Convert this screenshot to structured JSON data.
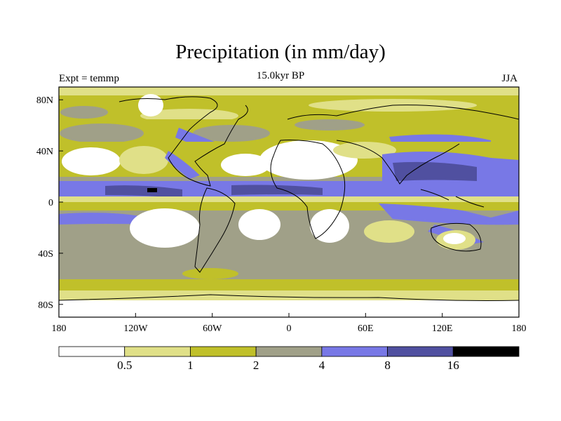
{
  "title": "Precipitation (in mm/day)",
  "subtitle": "15.0kyr BP",
  "left_label": "Expt = temmp",
  "right_label": "JJA",
  "x_ticks": [
    "180",
    "120W",
    "60W",
    "0",
    "60E",
    "120E",
    "180"
  ],
  "y_ticks": [
    "80N",
    "40N",
    "0",
    "40S",
    "80S"
  ],
  "colorbar": {
    "colors": [
      "#ffffff",
      "#e0e088",
      "#c0c02a",
      "#a0a088",
      "#7878e6",
      "#5050a0",
      "#000000"
    ],
    "labels": [
      "0.5",
      "1",
      "2",
      "4",
      "8",
      "16"
    ]
  },
  "colors": {
    "white": "#ffffff",
    "light_yellow": "#e0e088",
    "olive": "#c0c02a",
    "gray": "#a0a088",
    "blue": "#7878e6",
    "dark_blue": "#5050a0",
    "black": "#000000"
  }
}
